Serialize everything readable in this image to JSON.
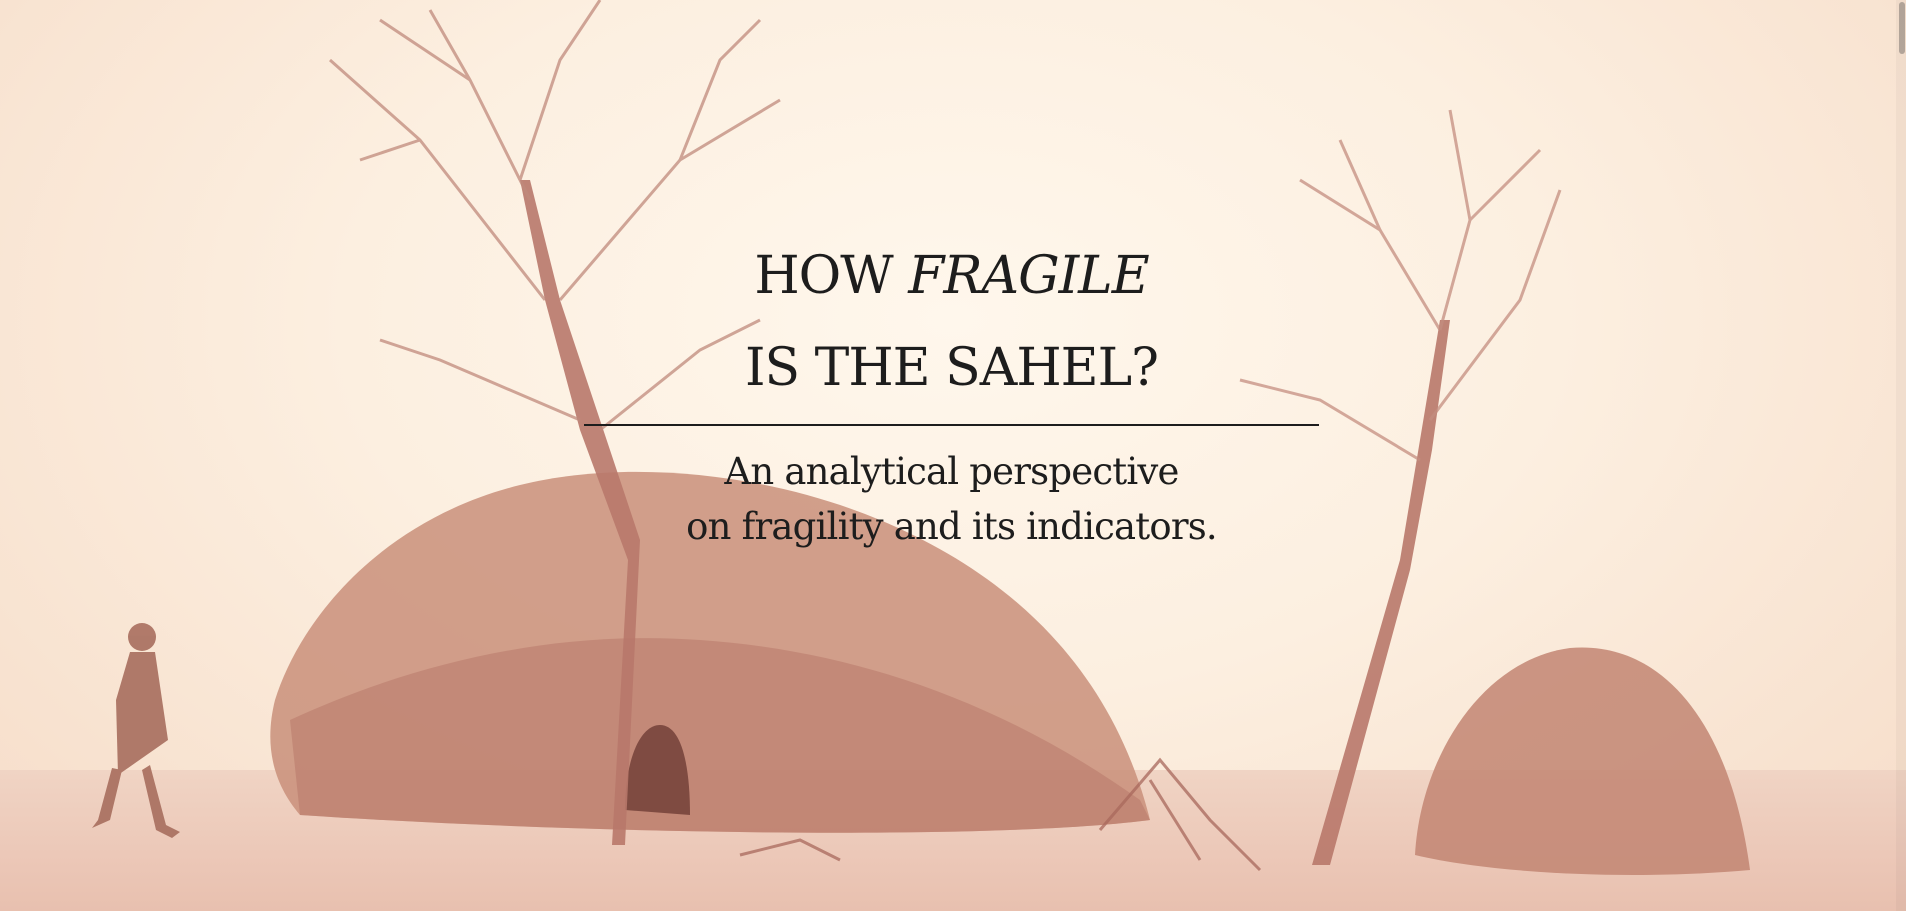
{
  "hero": {
    "title": {
      "line1_prefix": "HOW ",
      "line1_emphasis": "FRAGILE",
      "line2": "IS THE SAHEL?"
    },
    "subtitle": {
      "line1": "An analytical perspective",
      "line2": "on fragility and its indicators."
    }
  },
  "colors": {
    "text": "#1d1d1d",
    "sky": "#fcefe0",
    "sand": "#ecc8b8",
    "hut": "#c98f7a",
    "tree": "#b8786a"
  }
}
